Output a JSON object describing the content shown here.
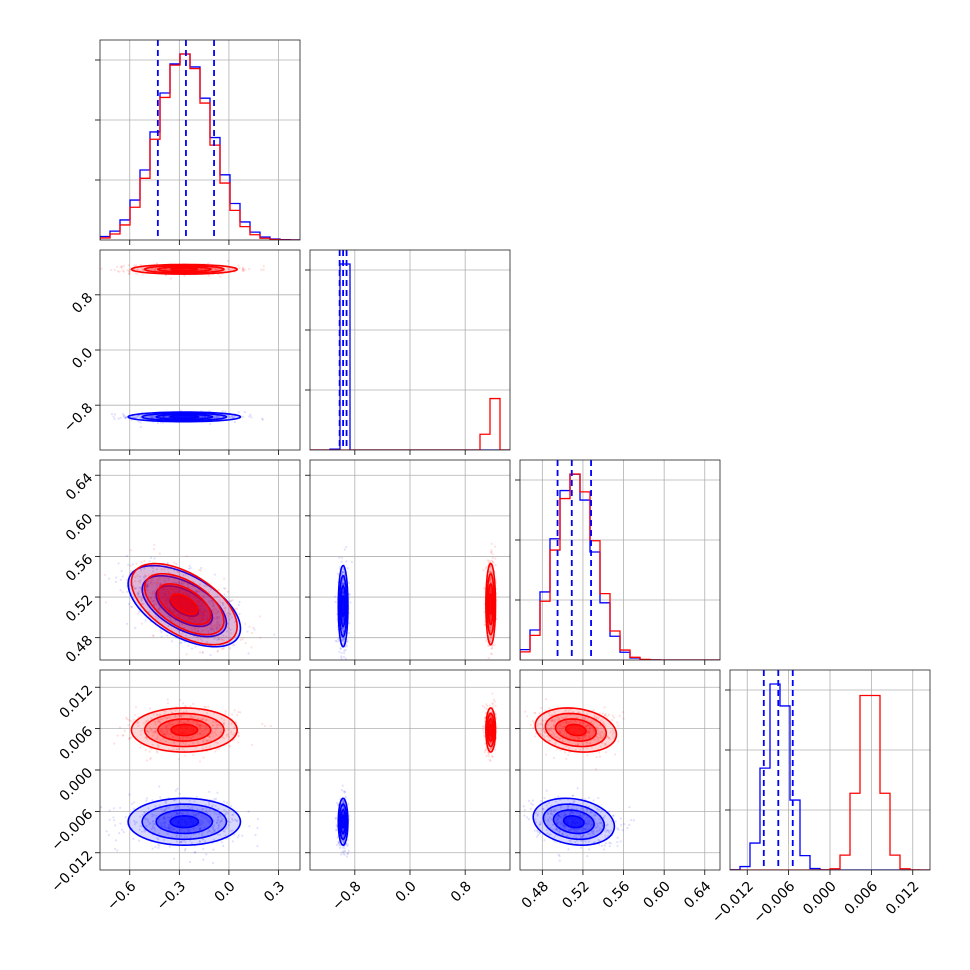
{
  "chart_data": {
    "type": "corner",
    "grid": true,
    "parameters": [
      {
        "index": 0,
        "range": [
          -0.78,
          0.43
        ],
        "ticks": [
          -0.6,
          -0.3,
          0.0,
          0.3
        ],
        "tick_labels": [
          "−0.6",
          "−0.3",
          "0.0",
          "0.3"
        ]
      },
      {
        "index": 1,
        "range": [
          -1.45,
          1.45
        ],
        "ticks": [
          -0.8,
          0.0,
          0.8
        ],
        "tick_labels": [
          "−0.8",
          "0.0",
          "0.8"
        ]
      },
      {
        "index": 2,
        "range": [
          0.458,
          0.655
        ],
        "ticks": [
          0.48,
          0.52,
          0.56,
          0.6,
          0.64
        ],
        "tick_labels": [
          "0.48",
          "0.52",
          "0.56",
          "0.60",
          "0.64"
        ]
      },
      {
        "index": 3,
        "range": [
          -0.0145,
          0.0145
        ],
        "ticks": [
          -0.012,
          -0.006,
          0.0,
          0.006,
          0.012
        ],
        "tick_labels": [
          "−0.012",
          "−0.006",
          "0.000",
          "0.006",
          "0.012"
        ]
      }
    ],
    "series": [
      {
        "color": "#0000ff",
        "quantiles": [
          [
            -0.43,
            -0.26,
            -0.09
          ],
          [
            -1.02,
            -0.97,
            -0.92
          ],
          [
            0.495,
            0.509,
            0.528
          ],
          [
            -0.0096,
            -0.0075,
            -0.0054
          ]
        ],
        "means": [
          -0.27,
          -0.97,
          0.511,
          -0.0075
        ],
        "sds": [
          0.17,
          0.035,
          0.02,
          0.0017
        ],
        "correlations": {
          "0-2": -0.55,
          "0-3": 0.0,
          "1-2": 0.0,
          "1-3": 0.0,
          "2-3": -0.2
        }
      },
      {
        "color": "#ff0000",
        "means": [
          -0.27,
          1.17,
          0.513,
          0.0058
        ],
        "sds": [
          0.16,
          0.035,
          0.02,
          0.0016
        ],
        "correlations": {
          "0-2": -0.55,
          "0-3": 0.0,
          "1-2": 0.0,
          "1-3": 0.0,
          "2-3": -0.2
        }
      }
    ]
  }
}
